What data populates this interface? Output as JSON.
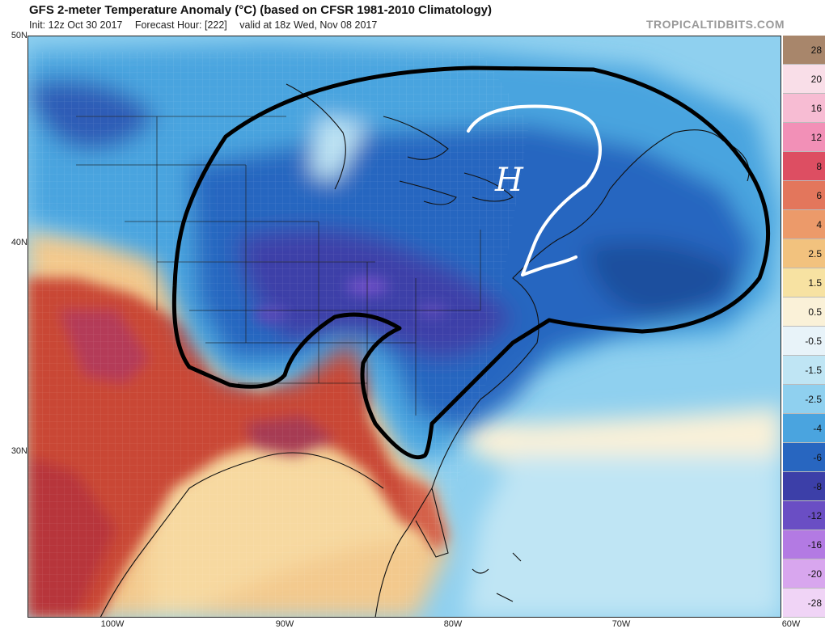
{
  "header": {
    "title": "GFS 2-meter Temperature Anomaly (°C) (based on CFSR 1981-2010 Climatology)",
    "init": "Init: 12z Oct 30 2017",
    "forecast_hour": "Forecast Hour: [222]",
    "valid": "valid at 18z Wed, Nov 08 2017",
    "brand": "TROPICALTIDBITS.COM"
  },
  "axes": {
    "lat_labels": [
      "50N",
      "40N",
      "30N"
    ],
    "lon_labels": [
      "100W",
      "90W",
      "80W",
      "70W",
      "60W"
    ]
  },
  "annotation": {
    "pressure_label": "H"
  },
  "colorbar": {
    "labels": [
      "28",
      "20",
      "16",
      "12",
      "8",
      "6",
      "4",
      "2.5",
      "1.5",
      "0.5",
      "-0.5",
      "-1.5",
      "-2.5",
      "-4",
      "-6",
      "-8",
      "-12",
      "-16",
      "-20",
      "-28"
    ],
    "colors": [
      "#a8866b",
      "#f9dee8",
      "#f7bcd3",
      "#f290b7",
      "#dd4e62",
      "#e3765c",
      "#ec9a6a",
      "#f2c27e",
      "#f7e2a2",
      "#faf1d8",
      "#e8f3f9",
      "#bfe5f4",
      "#8fd0ef",
      "#4aa4df",
      "#2866c0",
      "#3c3fa8",
      "#6a4ec4",
      "#b37ae3",
      "#d8a6ee",
      "#f0d4f6"
    ]
  },
  "colors": {
    "warm_land": "#c94734",
    "cold_core": "#2a56b4",
    "warm_gulf": "#f3c98d",
    "annotation_line": "#000000",
    "arrow": "#ffffff"
  }
}
